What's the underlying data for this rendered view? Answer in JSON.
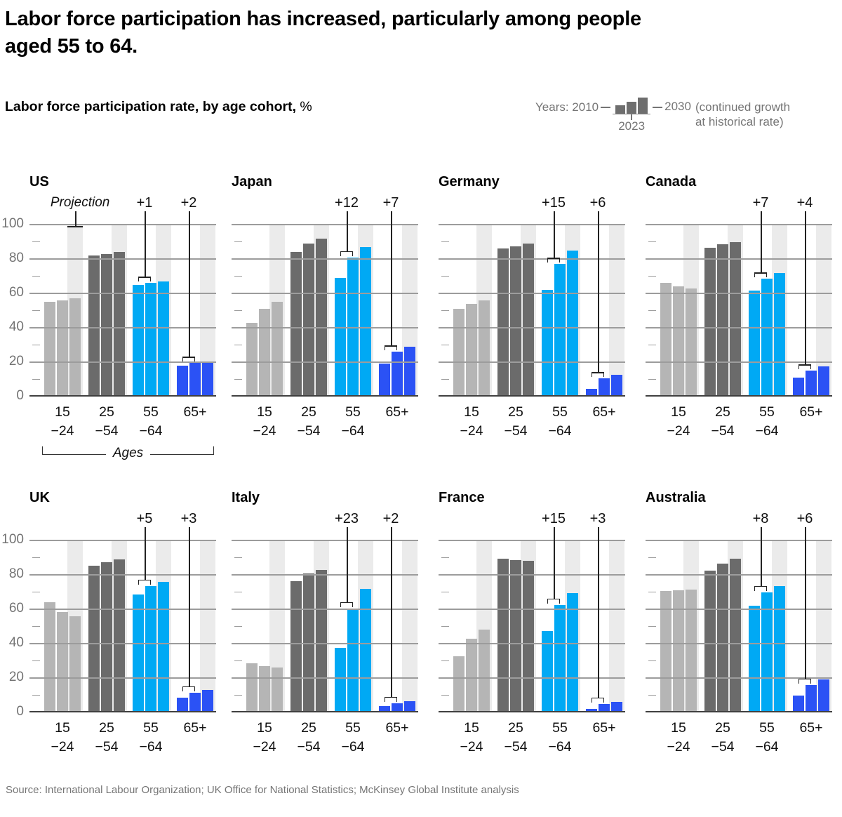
{
  "title_line1": "Labor force participation has increased, particularly among people",
  "title_line2": "aged 55 to 64.",
  "subtitle": {
    "text": "Labor force participation rate, by age cohort,",
    "unit": "%"
  },
  "legend": {
    "prefix": "Years: 2010",
    "mid_year": "2023",
    "end_year": "2030",
    "note1": "(continued growth",
    "note2": "at historical rate)"
  },
  "source": "Source: International Labour Organization; UK Office for National Statistics; McKinsey Global Institute analysis",
  "axis": {
    "yticks": [
      0,
      20,
      40,
      60,
      80,
      100
    ],
    "minor_ticks": [
      10,
      30,
      50,
      70,
      90
    ],
    "categories": [
      [
        "15",
        "−24"
      ],
      [
        "25",
        "−54"
      ],
      [
        "55",
        "−64"
      ],
      [
        "65+"
      ]
    ],
    "ages_label": "Ages",
    "projection_label": "Projection"
  },
  "colors": {
    "age_15_24": "#b5b5b5",
    "age_25_54": "#6b6b6b",
    "age_55_64": "#00a9f4",
    "age_65plus": "#2b52f5",
    "projection_band": "#ebebeb",
    "gridline": "#9c9c9c",
    "baseline": "#404040",
    "annotation": "#222222",
    "axis_text": "#737373",
    "muted_text": "#757575"
  },
  "chart_data": {
    "type": "bar",
    "unit": "%",
    "years": [
      "2010",
      "2023",
      "2030"
    ],
    "ylim": [
      0,
      100
    ],
    "age_cohorts": [
      "15–24",
      "25–54",
      "55–64",
      "65+"
    ],
    "charts": [
      {
        "country": "US",
        "show_y_axis": true,
        "show_projection_label": true,
        "show_ages_label": true,
        "groups": [
          [
            55,
            56,
            57
          ],
          [
            82,
            83,
            84
          ],
          [
            65,
            66,
            67
          ],
          [
            17.8,
            19.5,
            20.5
          ]
        ],
        "deltas": [
          null,
          null,
          "+1",
          "+2"
        ]
      },
      {
        "country": "Japan",
        "show_y_axis": false,
        "show_projection_label": false,
        "show_ages_label": false,
        "groups": [
          [
            43,
            51,
            55
          ],
          [
            84,
            89,
            92
          ],
          [
            69,
            81,
            87
          ],
          [
            19,
            26,
            29
          ]
        ],
        "deltas": [
          null,
          null,
          "+12",
          "+7"
        ]
      },
      {
        "country": "Germany",
        "show_y_axis": false,
        "show_projection_label": false,
        "show_ages_label": false,
        "groups": [
          [
            51,
            54,
            56
          ],
          [
            86,
            87.5,
            89
          ],
          [
            62,
            77,
            85
          ],
          [
            4.5,
            10.5,
            12.5
          ]
        ],
        "deltas": [
          null,
          null,
          "+15",
          "+6"
        ]
      },
      {
        "country": "Canada",
        "show_y_axis": false,
        "show_projection_label": false,
        "show_ages_label": false,
        "groups": [
          [
            66,
            64,
            63
          ],
          [
            86.5,
            88.5,
            90
          ],
          [
            61.5,
            68.5,
            72
          ],
          [
            11,
            15,
            17.5
          ]
        ],
        "deltas": [
          null,
          null,
          "+7",
          "+4"
        ]
      },
      {
        "country": "UK",
        "show_y_axis": true,
        "show_projection_label": false,
        "show_ages_label": false,
        "groups": [
          [
            64,
            58.5,
            56
          ],
          [
            85.5,
            87.5,
            89
          ],
          [
            68.5,
            73.5,
            76
          ],
          [
            8.5,
            11.5,
            13
          ]
        ],
        "deltas": [
          null,
          null,
          "+5",
          "+3"
        ]
      },
      {
        "country": "Italy",
        "show_y_axis": false,
        "show_projection_label": false,
        "show_ages_label": false,
        "groups": [
          [
            28.5,
            27,
            26
          ],
          [
            76.5,
            81,
            83
          ],
          [
            37.5,
            60.5,
            72
          ],
          [
            3.5,
            5.5,
            6.5
          ]
        ],
        "deltas": [
          null,
          null,
          "+23",
          "+2"
        ]
      },
      {
        "country": "France",
        "show_y_axis": false,
        "show_projection_label": false,
        "show_ages_label": false,
        "groups": [
          [
            32.5,
            43,
            48
          ],
          [
            89.5,
            88.5,
            88
          ],
          [
            47.5,
            62.5,
            69.5
          ],
          [
            2,
            5,
            6
          ]
        ],
        "deltas": [
          null,
          null,
          "+15",
          "+3"
        ]
      },
      {
        "country": "Australia",
        "show_y_axis": false,
        "show_projection_label": false,
        "show_ages_label": false,
        "groups": [
          [
            70.5,
            71,
            71.5
          ],
          [
            82.5,
            86.5,
            89.5
          ],
          [
            62,
            70,
            73.5
          ],
          [
            10,
            16,
            19
          ]
        ],
        "deltas": [
          null,
          null,
          "+8",
          "+6"
        ]
      }
    ]
  }
}
